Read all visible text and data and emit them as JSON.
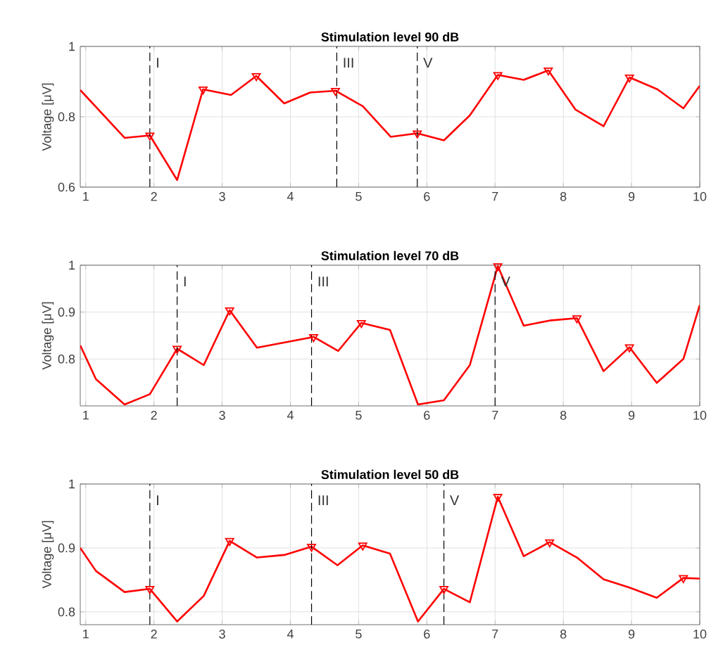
{
  "chart_data": [
    {
      "type": "line",
      "title": "Stimulation level 90 dB",
      "ylabel": "Voltage [μV]",
      "xlim": [
        0.92,
        10
      ],
      "ylim": [
        0.6,
        1
      ],
      "xticks": [
        1,
        2,
        3,
        4,
        5,
        6,
        7,
        8,
        9,
        10
      ],
      "yticks": [
        0.6,
        0.8,
        1
      ],
      "grid": true,
      "ref_lines": [
        {
          "axis": "x",
          "value": 1.94,
          "label": "I",
          "color": "#000000",
          "line_style": "dashed"
        },
        {
          "axis": "x",
          "value": 4.68,
          "label": "III",
          "color": "#000000",
          "line_style": "dashed"
        },
        {
          "axis": "x",
          "value": 5.86,
          "label": "V",
          "color": "#000000",
          "line_style": "dashed"
        }
      ],
      "series": [
        {
          "type": "line",
          "color": "#ff0000",
          "x": [
            0.92,
            1.57,
            1.94,
            2.34,
            2.72,
            3.13,
            3.5,
            3.91,
            4.29,
            4.66,
            5.06,
            5.47,
            5.86,
            6.25,
            6.63,
            7.04,
            7.42,
            7.78,
            8.18,
            8.59,
            8.97,
            9.38,
            9.76,
            10
          ],
          "values": [
            0.876,
            0.74,
            0.747,
            0.62,
            0.878,
            0.862,
            0.916,
            0.838,
            0.869,
            0.874,
            0.83,
            0.743,
            0.753,
            0.733,
            0.804,
            0.919,
            0.905,
            0.932,
            0.82,
            0.773,
            0.912,
            0.878,
            0.824,
            0.888
          ]
        },
        {
          "type": "scatter",
          "color": "#ff0000",
          "marker": "triangle",
          "x": [
            1.94,
            2.72,
            3.5,
            4.66,
            5.86,
            7.04,
            7.78,
            8.97
          ],
          "values": [
            0.747,
            0.878,
            0.916,
            0.874,
            0.753,
            0.919,
            0.932,
            0.912
          ]
        }
      ]
    },
    {
      "type": "line",
      "title": "Stimulation level 70 dB",
      "ylabel": "Voltage [μV]",
      "xlim": [
        0.92,
        10
      ],
      "ylim": [
        0.7,
        1
      ],
      "xticks": [
        1,
        2,
        3,
        4,
        5,
        6,
        7,
        8,
        9,
        10
      ],
      "yticks": [
        0.8,
        0.9,
        1
      ],
      "grid": true,
      "ref_lines": [
        {
          "axis": "x",
          "value": 2.34,
          "label": "I",
          "color": "#000000",
          "line_style": "dashed"
        },
        {
          "axis": "x",
          "value": 4.31,
          "label": "III",
          "color": "#000000",
          "line_style": "dashed"
        },
        {
          "axis": "x",
          "value": 7.0,
          "label": "V",
          "color": "#000000",
          "line_style": "dashed"
        }
      ],
      "series": [
        {
          "type": "line",
          "color": "#ff0000",
          "x": [
            0.92,
            1.15,
            1.57,
            1.94,
            2.34,
            2.73,
            3.11,
            3.51,
            4.34,
            4.7,
            5.04,
            5.46,
            5.87,
            6.25,
            6.63,
            7.04,
            7.42,
            7.8,
            8.2,
            8.59,
            8.97,
            9.37,
            9.76,
            10
          ],
          "values": [
            0.829,
            0.757,
            0.703,
            0.725,
            0.822,
            0.787,
            0.904,
            0.824,
            0.847,
            0.817,
            0.877,
            0.862,
            0.703,
            0.712,
            0.787,
            0.998,
            0.871,
            0.882,
            0.887,
            0.774,
            0.825,
            0.749,
            0.8,
            0.915
          ]
        },
        {
          "type": "scatter",
          "color": "#ff0000",
          "marker": "triangle",
          "x": [
            2.34,
            3.11,
            4.34,
            5.04,
            7.04,
            8.2,
            8.97
          ],
          "values": [
            0.822,
            0.904,
            0.847,
            0.877,
            0.998,
            0.887,
            0.825
          ]
        }
      ]
    },
    {
      "type": "line",
      "title": "Stimulation level 50 dB",
      "ylabel": "Voltage [μV]",
      "xlim": [
        0.92,
        10
      ],
      "ylim": [
        0.78,
        1
      ],
      "xticks": [
        1,
        2,
        3,
        4,
        5,
        6,
        7,
        8,
        9,
        10
      ],
      "yticks": [
        0.8,
        0.9,
        1
      ],
      "grid": true,
      "ref_lines": [
        {
          "axis": "x",
          "value": 1.94,
          "label": "I",
          "color": "#000000",
          "line_style": "dashed"
        },
        {
          "axis": "x",
          "value": 4.31,
          "label": "III",
          "color": "#000000",
          "line_style": "dashed"
        },
        {
          "axis": "x",
          "value": 6.25,
          "label": "V",
          "color": "#000000",
          "line_style": "dashed"
        }
      ],
      "series": [
        {
          "type": "line",
          "color": "#ff0000",
          "x": [
            0.92,
            1.15,
            1.57,
            1.94,
            2.34,
            2.73,
            3.11,
            3.51,
            3.91,
            4.31,
            4.69,
            5.06,
            5.46,
            5.87,
            6.25,
            6.63,
            7.04,
            7.42,
            7.8,
            8.2,
            8.59,
            8.97,
            9.37,
            9.76,
            10
          ],
          "values": [
            0.9,
            0.864,
            0.831,
            0.836,
            0.785,
            0.825,
            0.911,
            0.885,
            0.889,
            0.902,
            0.873,
            0.904,
            0.891,
            0.785,
            0.836,
            0.815,
            0.98,
            0.887,
            0.909,
            0.885,
            0.851,
            0.838,
            0.822,
            0.853,
            0.852
          ]
        },
        {
          "type": "scatter",
          "color": "#ff0000",
          "marker": "triangle",
          "x": [
            1.94,
            3.11,
            4.31,
            5.06,
            6.25,
            7.04,
            7.8,
            9.76
          ],
          "values": [
            0.836,
            0.911,
            0.902,
            0.904,
            0.836,
            0.98,
            0.909,
            0.853
          ]
        }
      ]
    }
  ]
}
